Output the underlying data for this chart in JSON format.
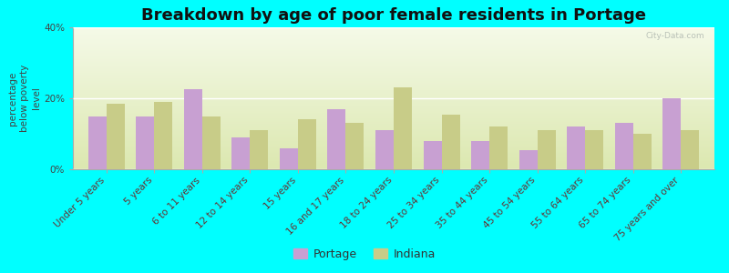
{
  "title": "Breakdown by age of poor female residents in Portage",
  "ylabel": "percentage\nbelow poverty\nlevel",
  "categories": [
    "Under 5 years",
    "5 years",
    "6 to 11 years",
    "12 to 14 years",
    "15 years",
    "16 and 17 years",
    "18 to 24 years",
    "25 to 34 years",
    "35 to 44 years",
    "45 to 54 years",
    "55 to 64 years",
    "65 to 74 years",
    "75 years and over"
  ],
  "portage": [
    15.0,
    15.0,
    22.5,
    9.0,
    6.0,
    17.0,
    11.0,
    8.0,
    8.0,
    5.5,
    12.0,
    13.0,
    20.0
  ],
  "indiana": [
    18.5,
    19.0,
    15.0,
    11.0,
    14.0,
    13.0,
    23.0,
    15.5,
    12.0,
    11.0,
    11.0,
    10.0,
    11.0
  ],
  "portage_color": "#c8a0d2",
  "indiana_color": "#c8cc88",
  "background_color": "#00ffff",
  "plot_bg_color_top": "#dce8b0",
  "plot_bg_color_bottom": "#f5fae8",
  "ylim": [
    0,
    40
  ],
  "yticks": [
    0,
    20,
    40
  ],
  "ytick_labels": [
    "0%",
    "20%",
    "40%"
  ],
  "bar_width": 0.38,
  "title_fontsize": 13,
  "label_fontsize": 7.5,
  "tick_fontsize": 7.5,
  "legend_portage": "Portage",
  "legend_indiana": "Indiana"
}
